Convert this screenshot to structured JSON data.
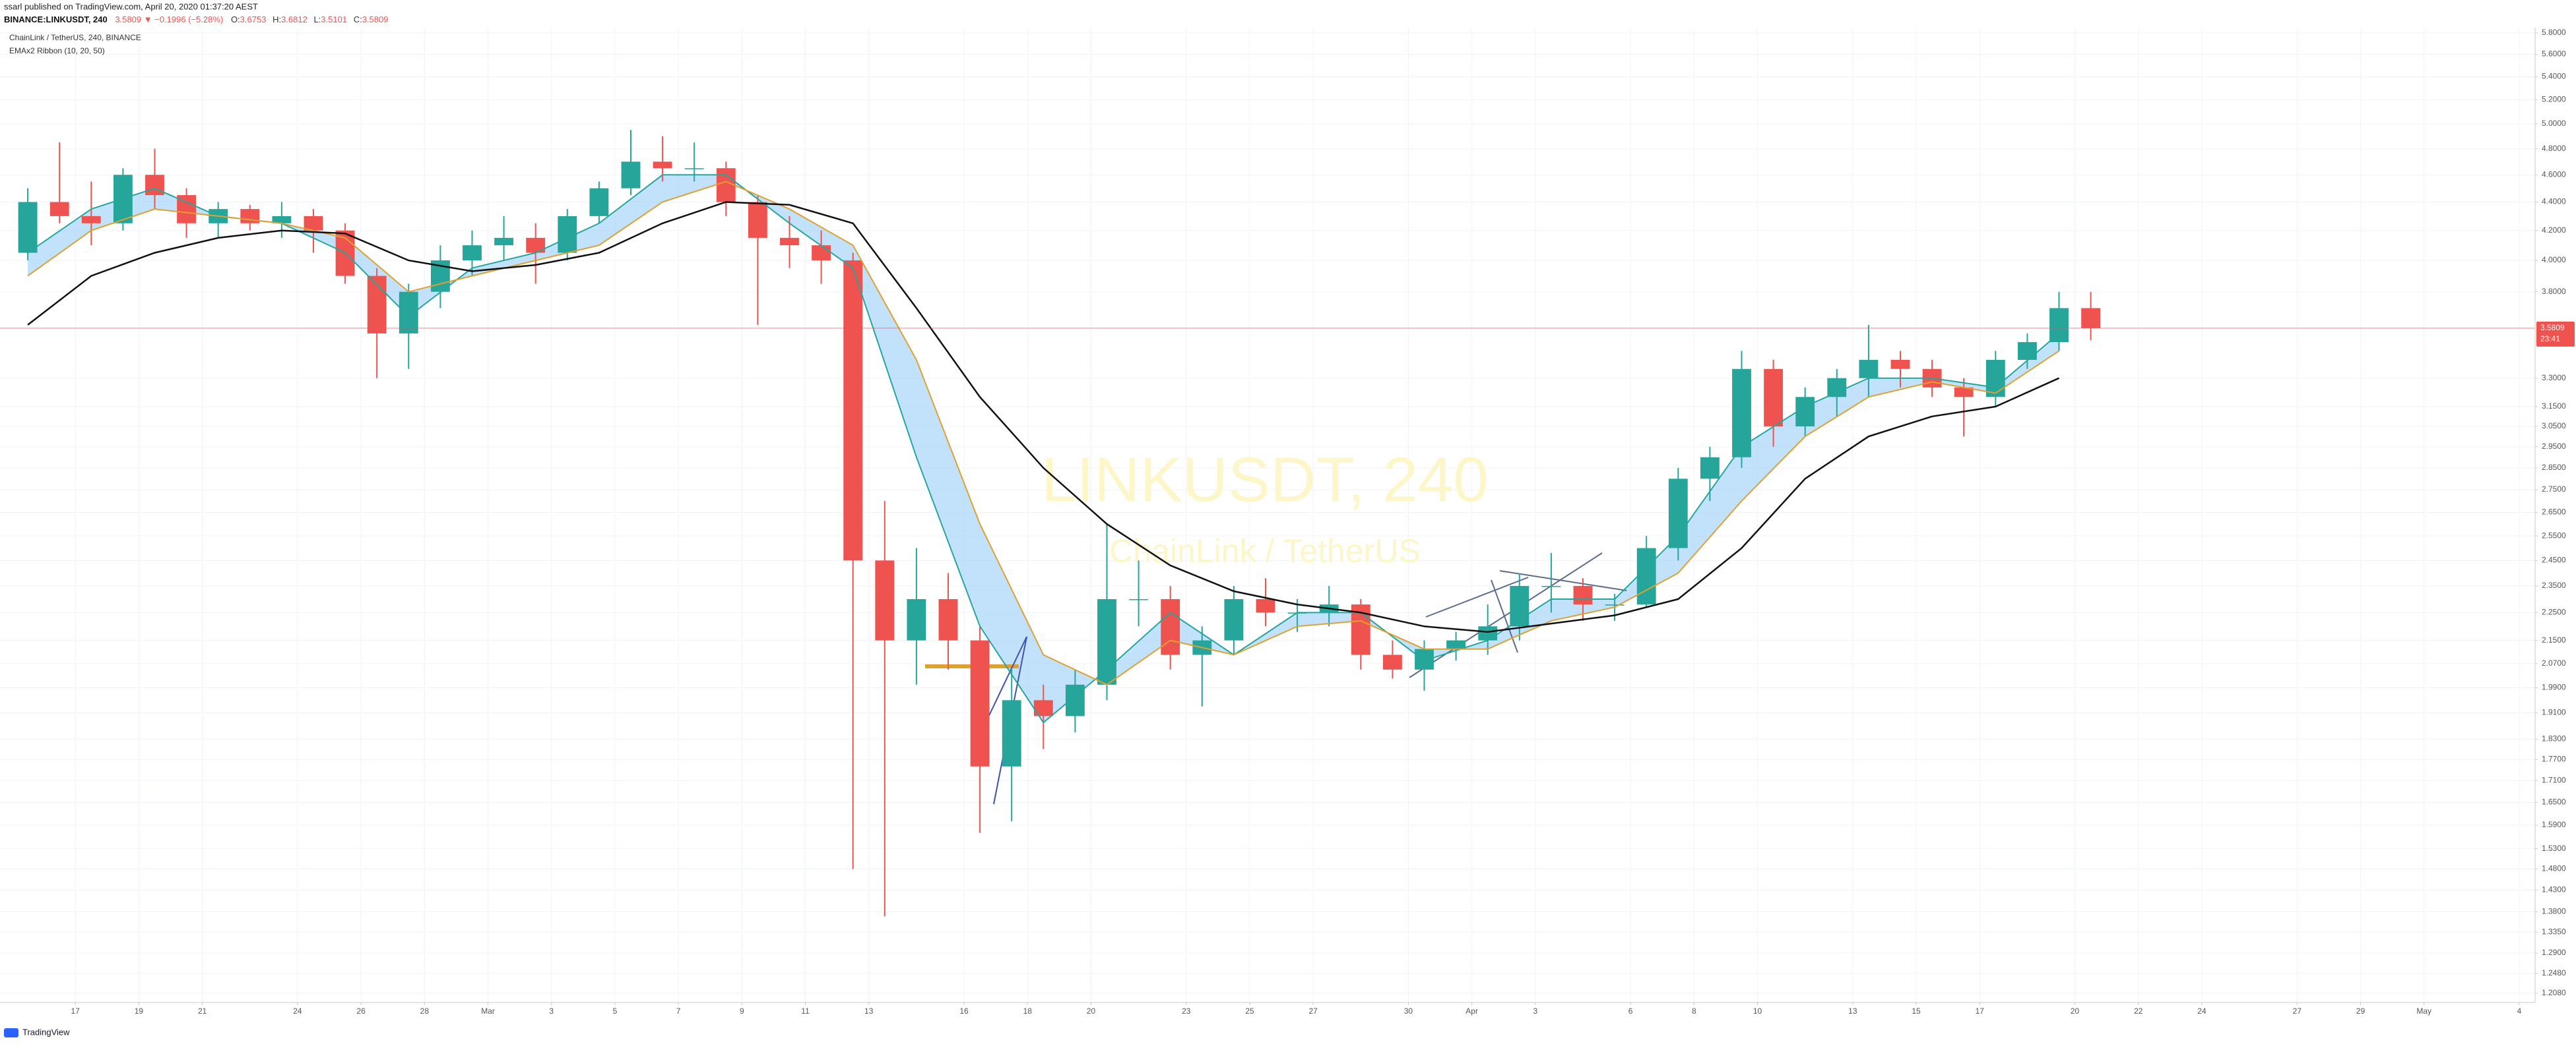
{
  "chart_data": {
    "type": "candlestick",
    "publisher": "ssarl published on TradingView.com, April 20, 2020 01:37:20 AEST",
    "symbol": "BINANCE:LINKUSDT, 240",
    "change": "3.5809 ▼ −0.1996 (−5.28%)",
    "ohlc": [
      {
        "key": "O:",
        "value": "3.6753"
      },
      {
        "key": "H:",
        "value": "3.6812"
      },
      {
        "key": "L:",
        "value": "3.5101"
      },
      {
        "key": "C:",
        "value": "3.5809"
      }
    ],
    "legend": [
      "ChainLink / TetherUS, 240, BINANCE",
      "EMAx2 Ribbon (10, 20, 50)"
    ],
    "watermark": "LINKUSDT, 240",
    "watermark_sub": "ChainLink / TetherUS",
    "countdown": "23:41",
    "footer": "TradingView",
    "log_scale": true,
    "grid": true,
    "up_color": "#26a69a",
    "down_color": "#ef5350",
    "ribbon_color": "#90caf9",
    "xlim": [
      "2020-02-14T15:00",
      "2020-05-04T12:00"
    ],
    "ylim": [
      1.19,
      5.85
    ],
    "xticks": [
      {
        "value": "2020-02-17",
        "label": "17"
      },
      {
        "value": "2020-02-19",
        "label": "19"
      },
      {
        "value": "2020-02-21",
        "label": "21"
      },
      {
        "value": "2020-02-24",
        "label": "24"
      },
      {
        "value": "2020-02-26",
        "label": "26"
      },
      {
        "value": "2020-02-28",
        "label": "28"
      },
      {
        "value": "2020-03-01",
        "label": "Mar"
      },
      {
        "value": "2020-03-03",
        "label": "3"
      },
      {
        "value": "2020-03-05",
        "label": "5"
      },
      {
        "value": "2020-03-07",
        "label": "7"
      },
      {
        "value": "2020-03-09",
        "label": "9"
      },
      {
        "value": "2020-03-11",
        "label": "11"
      },
      {
        "value": "2020-03-13",
        "label": "13"
      },
      {
        "value": "2020-03-16",
        "label": "16"
      },
      {
        "value": "2020-03-18",
        "label": "18"
      },
      {
        "value": "2020-03-20",
        "label": "20"
      },
      {
        "value": "2020-03-23",
        "label": "23"
      },
      {
        "value": "2020-03-25",
        "label": "25"
      },
      {
        "value": "2020-03-27",
        "label": "27"
      },
      {
        "value": "2020-03-30",
        "label": "30"
      },
      {
        "value": "2020-04-01",
        "label": "Apr"
      },
      {
        "value": "2020-04-03",
        "label": "3"
      },
      {
        "value": "2020-04-06",
        "label": "6"
      },
      {
        "value": "2020-04-08",
        "label": "8"
      },
      {
        "value": "2020-04-10",
        "label": "10"
      },
      {
        "value": "2020-04-13",
        "label": "13"
      },
      {
        "value": "2020-04-15",
        "label": "15"
      },
      {
        "value": "2020-04-17",
        "label": "17"
      },
      {
        "value": "2020-04-20",
        "label": "20"
      },
      {
        "value": "2020-04-22",
        "label": "22"
      },
      {
        "value": "2020-04-24",
        "label": "24"
      },
      {
        "value": "2020-04-27",
        "label": "27"
      },
      {
        "value": "2020-04-29",
        "label": "29"
      },
      {
        "value": "2020-05-01",
        "label": "May"
      },
      {
        "value": "2020-05-04",
        "label": "4"
      }
    ],
    "yticks": [
      {
        "value": 5.8,
        "label": "5.8000"
      },
      {
        "value": 5.6,
        "label": "5.6000"
      },
      {
        "value": 5.4,
        "label": "5.4000"
      },
      {
        "value": 5.2,
        "label": "5.2000"
      },
      {
        "value": 5.0,
        "label": "5.0000"
      },
      {
        "value": 4.8,
        "label": "4.8000"
      },
      {
        "value": 4.6,
        "label": "4.6000"
      },
      {
        "value": 4.4,
        "label": "4.4000"
      },
      {
        "value": 4.2,
        "label": "4.2000"
      },
      {
        "value": 4.0,
        "label": "4.0000"
      },
      {
        "value": 3.8,
        "label": "3.8000"
      },
      {
        "value": 3.3,
        "label": "3.3000"
      },
      {
        "value": 3.15,
        "label": "3.1500"
      },
      {
        "value": 3.05,
        "label": "3.0500"
      },
      {
        "value": 2.95,
        "label": "2.9500"
      },
      {
        "value": 2.85,
        "label": "2.8500"
      },
      {
        "value": 2.75,
        "label": "2.7500"
      },
      {
        "value": 2.65,
        "label": "2.6500"
      },
      {
        "value": 2.55,
        "label": "2.5500"
      },
      {
        "value": 2.45,
        "label": "2.4500"
      },
      {
        "value": 2.35,
        "label": "2.3500"
      },
      {
        "value": 2.25,
        "label": "2.2500"
      },
      {
        "value": 2.15,
        "label": "2.1500"
      },
      {
        "value": 2.07,
        "label": "2.0700"
      },
      {
        "value": 1.99,
        "label": "1.9900"
      },
      {
        "value": 1.91,
        "label": "1.9100"
      },
      {
        "value": 1.83,
        "label": "1.8300"
      },
      {
        "value": 1.77,
        "label": "1.7700"
      },
      {
        "value": 1.71,
        "label": "1.7100"
      },
      {
        "value": 1.65,
        "label": "1.6500"
      },
      {
        "value": 1.59,
        "label": "1.5900"
      },
      {
        "value": 1.53,
        "label": "1.5300"
      },
      {
        "value": 1.48,
        "label": "1.4800"
      },
      {
        "value": 1.43,
        "label": "1.4300"
      },
      {
        "value": 1.38,
        "label": "1.3800"
      },
      {
        "value": 1.335,
        "label": "1.3350"
      },
      {
        "value": 1.29,
        "label": "1.2900"
      },
      {
        "value": 1.248,
        "label": "1.2480"
      },
      {
        "value": 1.208,
        "label": "1.2080"
      }
    ],
    "candles": {
      "x": [
        "2020-02-15",
        "2020-02-16",
        "2020-02-17",
        "2020-02-18",
        "2020-02-19",
        "2020-02-20",
        "2020-02-21",
        "2020-02-22",
        "2020-02-23",
        "2020-02-24",
        "2020-02-25",
        "2020-02-26",
        "2020-02-27",
        "2020-02-28",
        "2020-02-29",
        "2020-03-01",
        "2020-03-02",
        "2020-03-03",
        "2020-03-04",
        "2020-03-05",
        "2020-03-06",
        "2020-03-07",
        "2020-03-08",
        "2020-03-09",
        "2020-03-10",
        "2020-03-11",
        "2020-03-12",
        "2020-03-13",
        "2020-03-14",
        "2020-03-15",
        "2020-03-16",
        "2020-03-17",
        "2020-03-18",
        "2020-03-19",
        "2020-03-20",
        "2020-03-21",
        "2020-03-22",
        "2020-03-23",
        "2020-03-24",
        "2020-03-25",
        "2020-03-26",
        "2020-03-27",
        "2020-03-28",
        "2020-03-29",
        "2020-03-30",
        "2020-03-31",
        "2020-04-01",
        "2020-04-02",
        "2020-04-03",
        "2020-04-04",
        "2020-04-05",
        "2020-04-06",
        "2020-04-07",
        "2020-04-08",
        "2020-04-09",
        "2020-04-10",
        "2020-04-11",
        "2020-04-12",
        "2020-04-13",
        "2020-04-14",
        "2020-04-15",
        "2020-04-16",
        "2020-04-17",
        "2020-04-18",
        "2020-04-19",
        "2020-04-20"
      ],
      "open": [
        4.05,
        4.4,
        4.3,
        4.25,
        4.6,
        4.45,
        4.25,
        4.35,
        4.25,
        4.3,
        4.2,
        3.9,
        3.55,
        3.8,
        4.0,
        4.1,
        4.15,
        4.05,
        4.3,
        4.5,
        4.7,
        4.65,
        4.65,
        4.4,
        4.15,
        4.1,
        4.0,
        2.45,
        2.15,
        2.3,
        2.15,
        1.75,
        1.95,
        1.9,
        2.0,
        2.3,
        2.3,
        2.1,
        2.15,
        2.3,
        2.25,
        2.25,
        2.28,
        2.1,
        2.05,
        2.12,
        2.15,
        2.2,
        2.35,
        2.35,
        2.28,
        2.28,
        2.5,
        2.8,
        2.9,
        3.35,
        3.05,
        3.2,
        3.3,
        3.4,
        3.35,
        3.25,
        3.2,
        3.4,
        3.5,
        3.7
      ],
      "high": [
        4.5,
        4.85,
        4.55,
        4.65,
        4.8,
        4.5,
        4.4,
        4.38,
        4.4,
        4.35,
        4.25,
        3.95,
        3.85,
        4.1,
        4.2,
        4.3,
        4.25,
        4.35,
        4.55,
        4.95,
        4.9,
        4.85,
        4.7,
        4.45,
        4.3,
        4.2,
        4.05,
        2.7,
        2.5,
        2.4,
        2.2,
        2.05,
        2.0,
        2.05,
        2.6,
        2.45,
        2.35,
        2.2,
        2.35,
        2.38,
        2.3,
        2.35,
        2.3,
        2.15,
        2.15,
        2.18,
        2.28,
        2.4,
        2.48,
        2.38,
        2.32,
        2.55,
        2.85,
        2.95,
        3.45,
        3.4,
        3.25,
        3.35,
        3.6,
        3.45,
        3.4,
        3.3,
        3.45,
        3.55,
        3.8,
        3.8
      ],
      "low": [
        4.0,
        4.25,
        4.1,
        4.2,
        4.35,
        4.15,
        4.15,
        4.2,
        4.15,
        4.05,
        3.85,
        3.3,
        3.35,
        3.7,
        3.9,
        4.0,
        3.85,
        4.0,
        4.25,
        4.45,
        4.55,
        4.55,
        4.3,
        3.6,
        3.95,
        3.85,
        1.48,
        1.37,
        2.0,
        2.05,
        1.57,
        1.6,
        1.8,
        1.85,
        1.95,
        2.2,
        2.05,
        1.93,
        2.1,
        2.2,
        2.18,
        2.2,
        2.05,
        2.02,
        1.98,
        2.08,
        2.1,
        2.15,
        2.25,
        2.22,
        2.22,
        2.27,
        2.45,
        2.7,
        2.85,
        2.95,
        3.0,
        3.1,
        3.2,
        3.25,
        3.2,
        3.0,
        3.15,
        3.35,
        3.45,
        3.51
      ],
      "close": [
        4.4,
        4.3,
        4.25,
        4.6,
        4.45,
        4.25,
        4.35,
        4.25,
        4.3,
        4.2,
        3.9,
        3.55,
        3.8,
        4.0,
        4.1,
        4.15,
        4.05,
        4.3,
        4.5,
        4.7,
        4.65,
        4.65,
        4.4,
        4.15,
        4.1,
        4.0,
        2.45,
        2.15,
        2.3,
        2.15,
        1.75,
        1.95,
        1.9,
        2.0,
        2.3,
        2.3,
        2.1,
        2.15,
        2.3,
        2.25,
        2.25,
        2.28,
        2.1,
        2.05,
        2.12,
        2.15,
        2.2,
        2.35,
        2.35,
        2.28,
        2.28,
        2.5,
        2.8,
        2.9,
        3.35,
        3.05,
        3.2,
        3.3,
        3.4,
        3.35,
        3.25,
        3.2,
        3.4,
        3.5,
        3.7,
        3.5809
      ]
    },
    "lines": [
      {
        "color": "#26a69a",
        "x": [
          "2020-02-15",
          "2020-02-17",
          "2020-02-19",
          "2020-02-21",
          "2020-02-23",
          "2020-02-25",
          "2020-02-27",
          "2020-02-29",
          "2020-03-02",
          "2020-03-04",
          "2020-03-06",
          "2020-03-08",
          "2020-03-10",
          "2020-03-12",
          "2020-03-14",
          "2020-03-16",
          "2020-03-18",
          "2020-03-20",
          "2020-03-22",
          "2020-03-24",
          "2020-03-26",
          "2020-03-28",
          "2020-03-30",
          "2020-04-01",
          "2020-04-03",
          "2020-04-05",
          "2020-04-07",
          "2020-04-09",
          "2020-04-11",
          "2020-04-13",
          "2020-04-15",
          "2020-04-17",
          "2020-04-19"
        ],
        "values": [
          4.05,
          4.35,
          4.5,
          4.3,
          4.25,
          4.05,
          3.65,
          3.95,
          4.05,
          4.25,
          4.6,
          4.6,
          4.25,
          3.95,
          2.9,
          2.2,
          1.88,
          2.05,
          2.25,
          2.1,
          2.25,
          2.25,
          2.08,
          2.15,
          2.3,
          2.3,
          2.55,
          2.95,
          3.15,
          3.3,
          3.3,
          3.25,
          3.55
        ]
      },
      {
        "color": "#e0a030",
        "x": [
          "2020-02-15",
          "2020-02-17",
          "2020-02-19",
          "2020-02-21",
          "2020-02-23",
          "2020-02-25",
          "2020-02-27",
          "2020-02-29",
          "2020-03-02",
          "2020-03-04",
          "2020-03-06",
          "2020-03-08",
          "2020-03-10",
          "2020-03-12",
          "2020-03-14",
          "2020-03-16",
          "2020-03-18",
          "2020-03-20",
          "2020-03-22",
          "2020-03-24",
          "2020-03-26",
          "2020-03-28",
          "2020-03-30",
          "2020-04-01",
          "2020-04-03",
          "2020-04-05",
          "2020-04-07",
          "2020-04-09",
          "2020-04-11",
          "2020-04-13",
          "2020-04-15",
          "2020-04-17",
          "2020-04-19"
        ],
        "values": [
          3.9,
          4.2,
          4.35,
          4.3,
          4.25,
          4.15,
          3.8,
          3.9,
          4.0,
          4.1,
          4.4,
          4.55,
          4.35,
          4.1,
          3.4,
          2.6,
          2.1,
          2.0,
          2.15,
          2.1,
          2.2,
          2.22,
          2.12,
          2.12,
          2.22,
          2.27,
          2.4,
          2.7,
          3.0,
          3.2,
          3.28,
          3.22,
          3.45
        ]
      },
      {
        "color": "#111111",
        "x": [
          "2020-02-15",
          "2020-02-17",
          "2020-02-19",
          "2020-02-21",
          "2020-02-23",
          "2020-02-25",
          "2020-02-27",
          "2020-02-29",
          "2020-03-02",
          "2020-03-04",
          "2020-03-06",
          "2020-03-08",
          "2020-03-10",
          "2020-03-12",
          "2020-03-14",
          "2020-03-16",
          "2020-03-18",
          "2020-03-20",
          "2020-03-22",
          "2020-03-24",
          "2020-03-26",
          "2020-03-28",
          "2020-03-30",
          "2020-04-01",
          "2020-04-03",
          "2020-04-05",
          "2020-04-07",
          "2020-04-09",
          "2020-04-11",
          "2020-04-13",
          "2020-04-15",
          "2020-04-17",
          "2020-04-19"
        ],
        "values": [
          3.6,
          3.9,
          4.05,
          4.15,
          4.2,
          4.18,
          4.0,
          3.93,
          3.97,
          4.05,
          4.25,
          4.4,
          4.38,
          4.25,
          3.7,
          3.2,
          2.85,
          2.6,
          2.43,
          2.33,
          2.28,
          2.25,
          2.2,
          2.18,
          2.21,
          2.24,
          2.3,
          2.5,
          2.8,
          3.0,
          3.1,
          3.15,
          3.3
        ]
      }
    ]
  }
}
